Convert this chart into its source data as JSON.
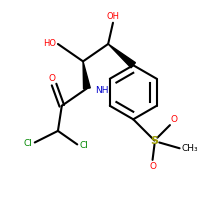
{
  "bg": "#ffffff",
  "bc": "#000000",
  "lw": 1.5,
  "figsize": [
    2.0,
    2.0
  ],
  "dpi": 100,
  "col_O": "#ff0000",
  "col_N": "#0000cc",
  "col_Cl": "#008800",
  "col_S": "#999900",
  "col_C": "#000000",
  "xlim": [
    0,
    200
  ],
  "ylim": [
    0,
    200
  ]
}
